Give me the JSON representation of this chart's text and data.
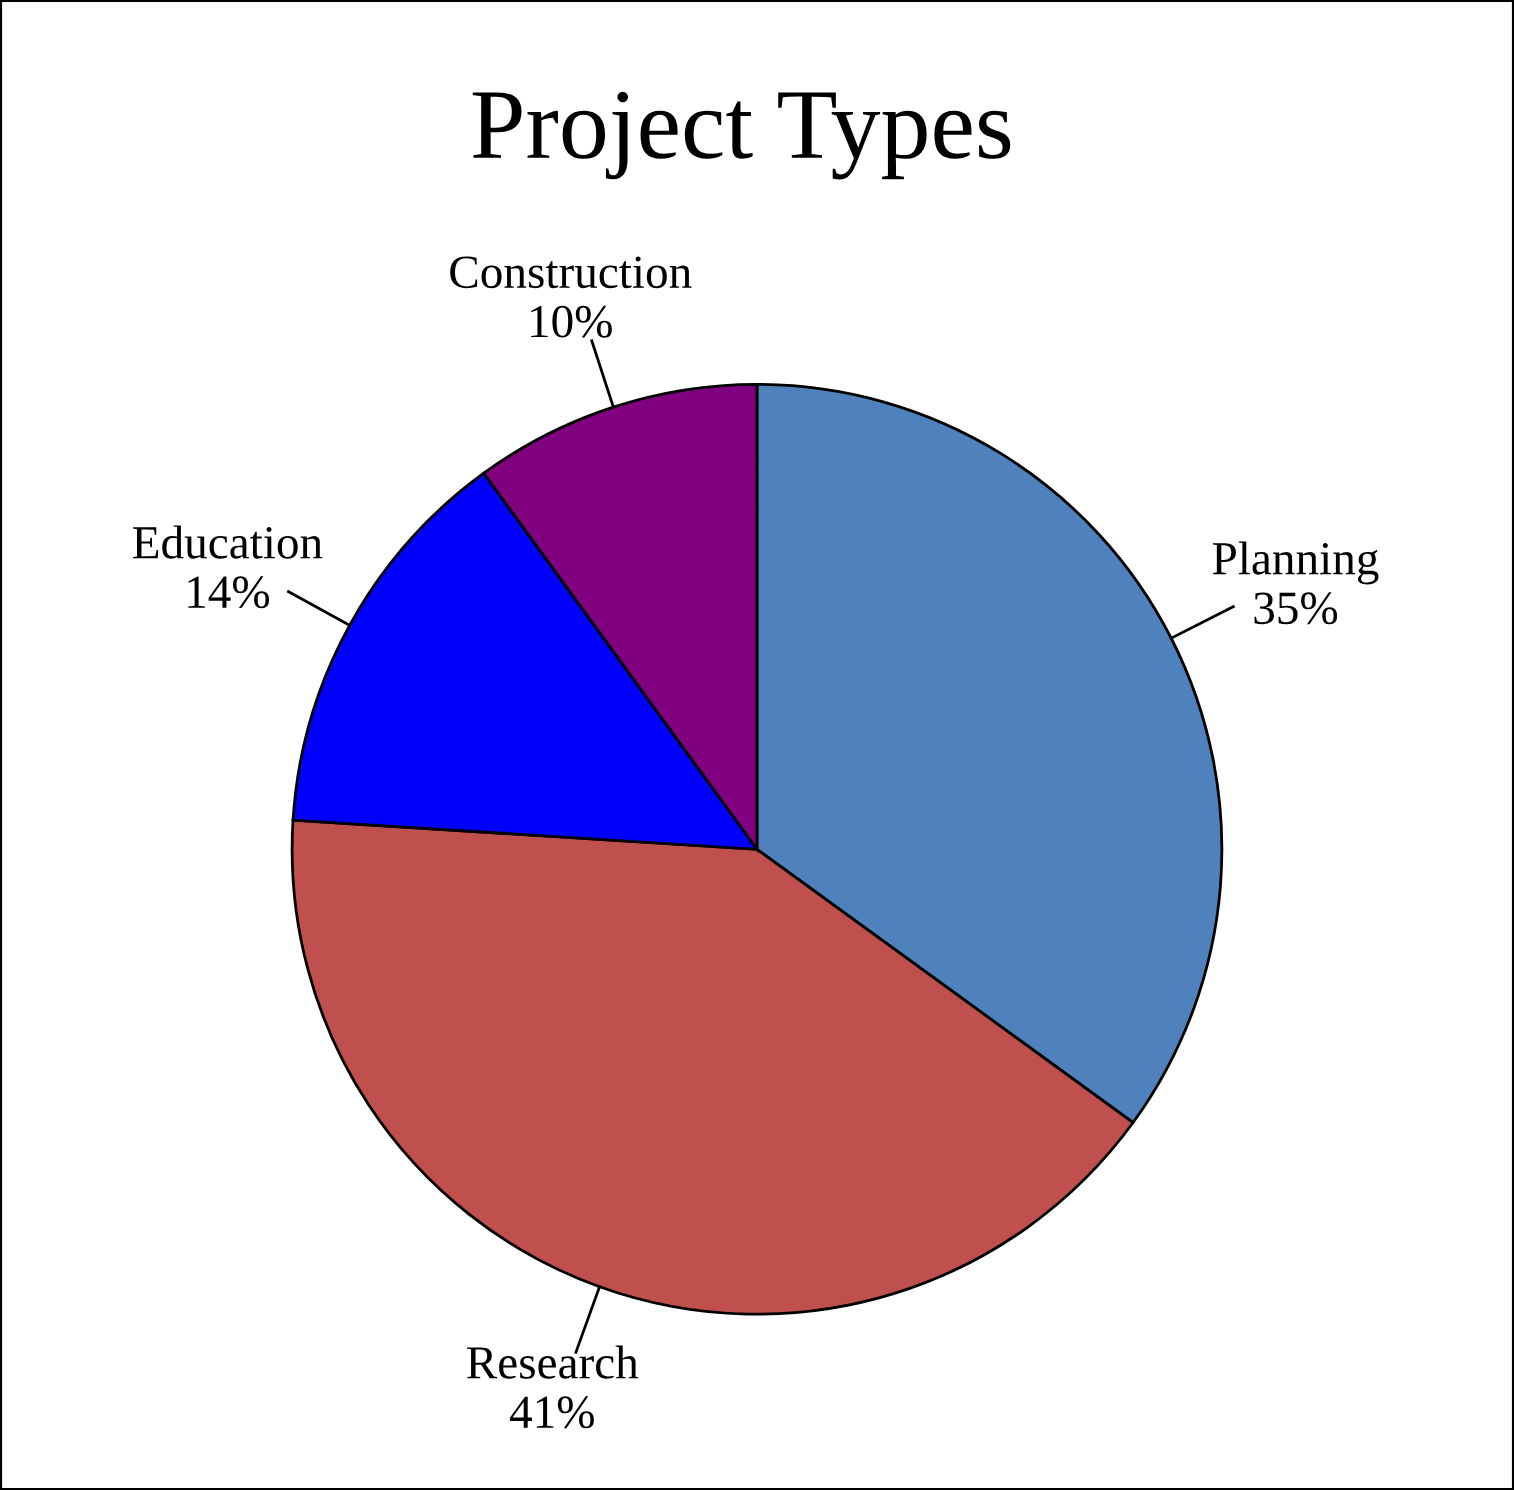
{
  "chart_data": {
    "type": "pie",
    "title": "Project Types",
    "categories": [
      "Planning",
      "Research",
      "Education",
      "Construction"
    ],
    "values": [
      35,
      41,
      14,
      10
    ],
    "value_labels": [
      "35%",
      "41%",
      "14%",
      "10%"
    ],
    "colors": [
      "#4f81bd",
      "#c0504d",
      "#0000ff",
      "#800080"
    ],
    "legend": false
  }
}
